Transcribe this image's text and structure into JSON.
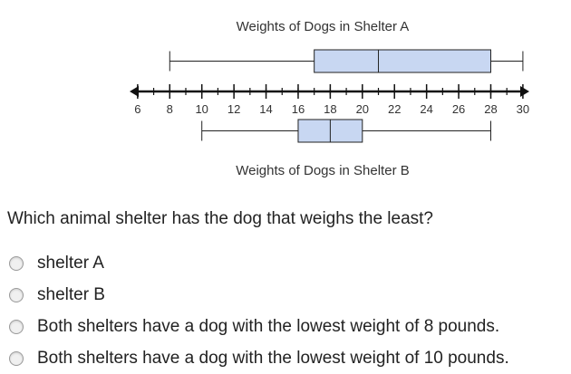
{
  "chart_data": {
    "type": "boxplot",
    "axis": {
      "min": 6,
      "max": 30,
      "step": 2,
      "ticks": [
        6,
        8,
        10,
        12,
        14,
        16,
        18,
        20,
        22,
        24,
        26,
        28,
        30
      ]
    },
    "series": [
      {
        "name": "Weights of Dogs in Shelter A",
        "min": 8,
        "q1": 17,
        "median": 21,
        "q3": 28,
        "max": 30
      },
      {
        "name": "Weights of Dogs in Shelter B",
        "min": 10,
        "q1": 16,
        "median": 18,
        "q3": 20,
        "max": 28
      }
    ],
    "box_color": "#c8d7f2"
  },
  "question": {
    "text": "Which animal shelter has the dog that weighs the least?"
  },
  "options": [
    {
      "label": "shelter A"
    },
    {
      "label": "shelter B"
    },
    {
      "label": "Both shelters have a dog with the lowest weight of 8 pounds."
    },
    {
      "label": "Both shelters have a dog with the lowest weight of 10 pounds."
    }
  ]
}
